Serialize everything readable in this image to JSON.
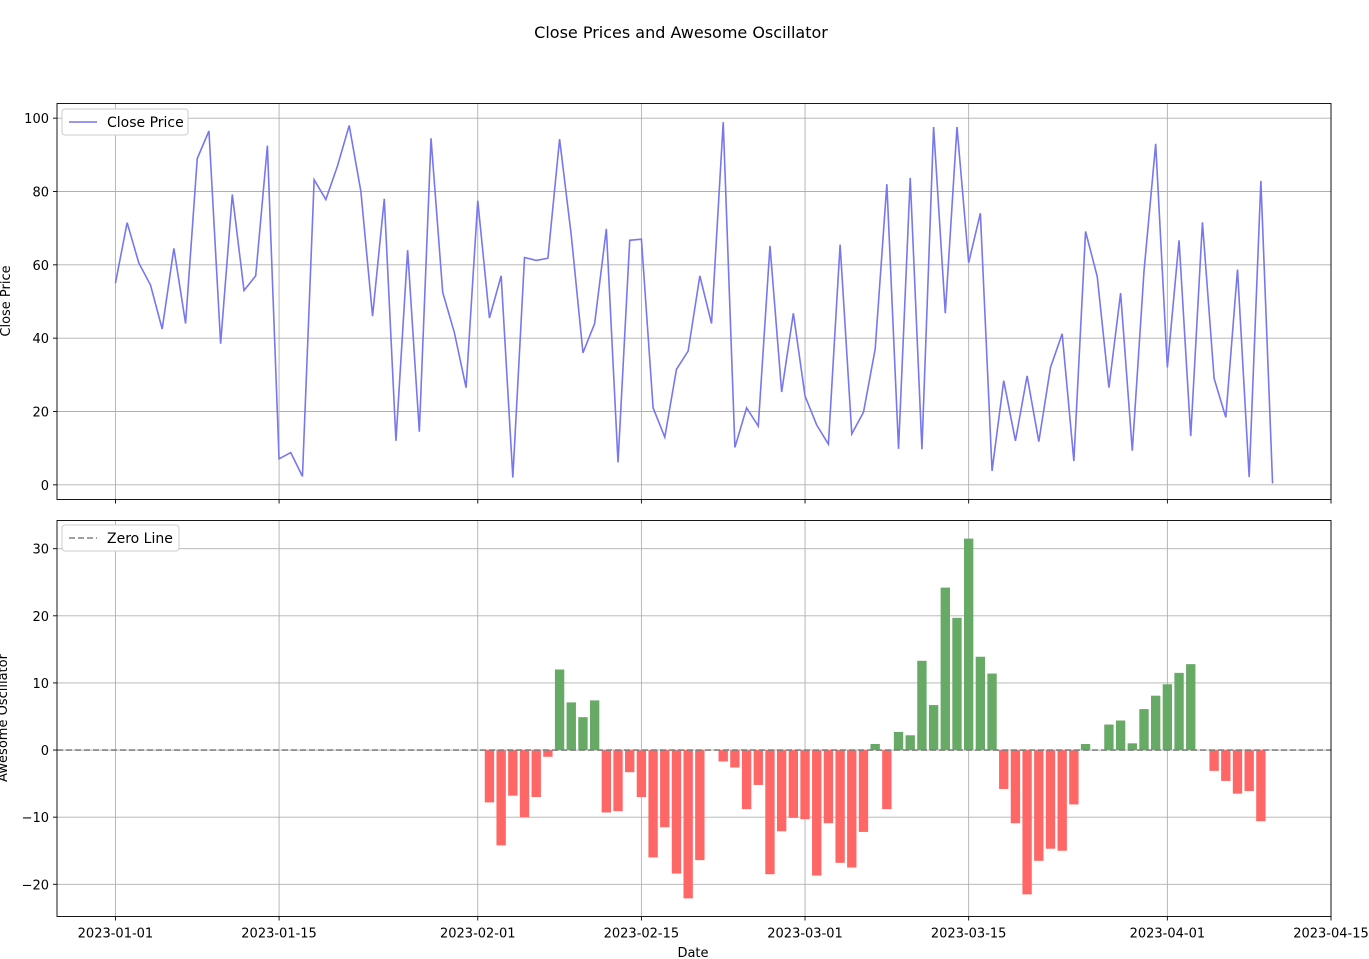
{
  "figure": {
    "suptitle": "Close Prices and Awesome Oscillator",
    "xlabel": "Date"
  },
  "chart_data": [
    {
      "type": "line",
      "ylabel": "Close Price",
      "legend": {
        "label": "Close Price",
        "placement": "top-left"
      },
      "grid": true,
      "line_color": "#7777ee",
      "x_start": "2023-01-01",
      "x_step_days": 1,
      "xlim": [
        "2022-12-27",
        "2023-04-15"
      ],
      "ylim": [
        -4,
        104
      ],
      "yticks": [
        0,
        20,
        40,
        60,
        80,
        100
      ],
      "xticks": [
        "2023-01-01",
        "2023-01-15",
        "2023-02-01",
        "2023-02-15",
        "2023-03-01",
        "2023-03-15",
        "2023-04-01",
        "2023-04-15"
      ],
      "values": [
        55,
        71.5,
        60.5,
        54.5,
        42.5,
        64.5,
        44,
        89,
        96.5,
        38.5,
        79.2,
        53,
        57,
        92.5,
        7.1,
        8.8,
        2.3,
        83.2,
        77.8,
        87,
        98,
        80,
        46,
        78,
        12,
        64,
        14.5,
        94.5,
        52.5,
        41.5,
        26.5,
        77.5,
        45.5,
        57,
        2,
        62,
        61.2,
        61.8,
        94.3,
        68,
        36,
        44,
        69.8,
        6.1,
        66.7,
        67,
        21,
        13,
        31.5,
        36.5,
        57,
        44,
        98.9,
        10.2,
        21,
        16,
        65.2,
        25.3,
        46.8,
        24.2,
        16.3,
        11.1,
        65.5,
        13.9,
        19.8,
        37,
        82,
        9.8,
        83.7,
        9.7,
        97.6,
        46.8,
        97.6,
        60.6,
        74.1,
        3.8,
        28.4,
        12,
        29.7,
        11.8,
        32,
        41.2,
        6.5,
        69.1,
        56.8,
        26.5,
        52.3,
        9.3,
        58.2,
        93,
        32,
        66.7,
        13.3,
        71.6,
        29,
        18.4,
        58.7,
        2.1,
        82.9,
        0.4
      ]
    },
    {
      "type": "bar",
      "ylabel": "Awesome Oscillator",
      "legend": {
        "label": "Zero Line",
        "placement": "top-left"
      },
      "grid": true,
      "positive_color": "#66aa66",
      "negative_color": "#ff6666",
      "zero_line_color": "#808080",
      "ylim": [
        -24.8,
        34.2
      ],
      "yticks": [
        -20,
        -10,
        0,
        10,
        20,
        30
      ],
      "xticks": [
        "2023-01-01",
        "2023-01-15",
        "2023-02-01",
        "2023-02-15",
        "2023-03-01",
        "2023-03-15",
        "2023-04-01",
        "2023-04-15"
      ],
      "x_start": "2023-02-02",
      "x_step_days": 1,
      "values": [
        -7.8,
        -14.2,
        -6.8,
        -10,
        -7,
        -1,
        12,
        7.1,
        4.9,
        7.4,
        -9.3,
        -9.1,
        -3.3,
        -7,
        -16,
        -11.5,
        -18.4,
        -22.1,
        -16.4,
        0,
        -1.7,
        -2.6,
        -8.8,
        -5.2,
        -18.5,
        -12.1,
        -10.1,
        -10.3,
        -18.7,
        -10.9,
        -16.8,
        -17.5,
        -12.2,
        0.9,
        -8.8,
        2.7,
        2.2,
        13.3,
        6.7,
        24.2,
        19.7,
        31.5,
        13.9,
        11.4,
        -5.8,
        -10.9,
        -21.5,
        -16.5,
        -14.7,
        -15,
        -8.1,
        0.9,
        0,
        3.8,
        4.4,
        1,
        6.1,
        8.1,
        9.8,
        11.5,
        12.8,
        0,
        -3.1,
        -4.6,
        -6.5,
        -6.1,
        -10.6
      ]
    }
  ]
}
